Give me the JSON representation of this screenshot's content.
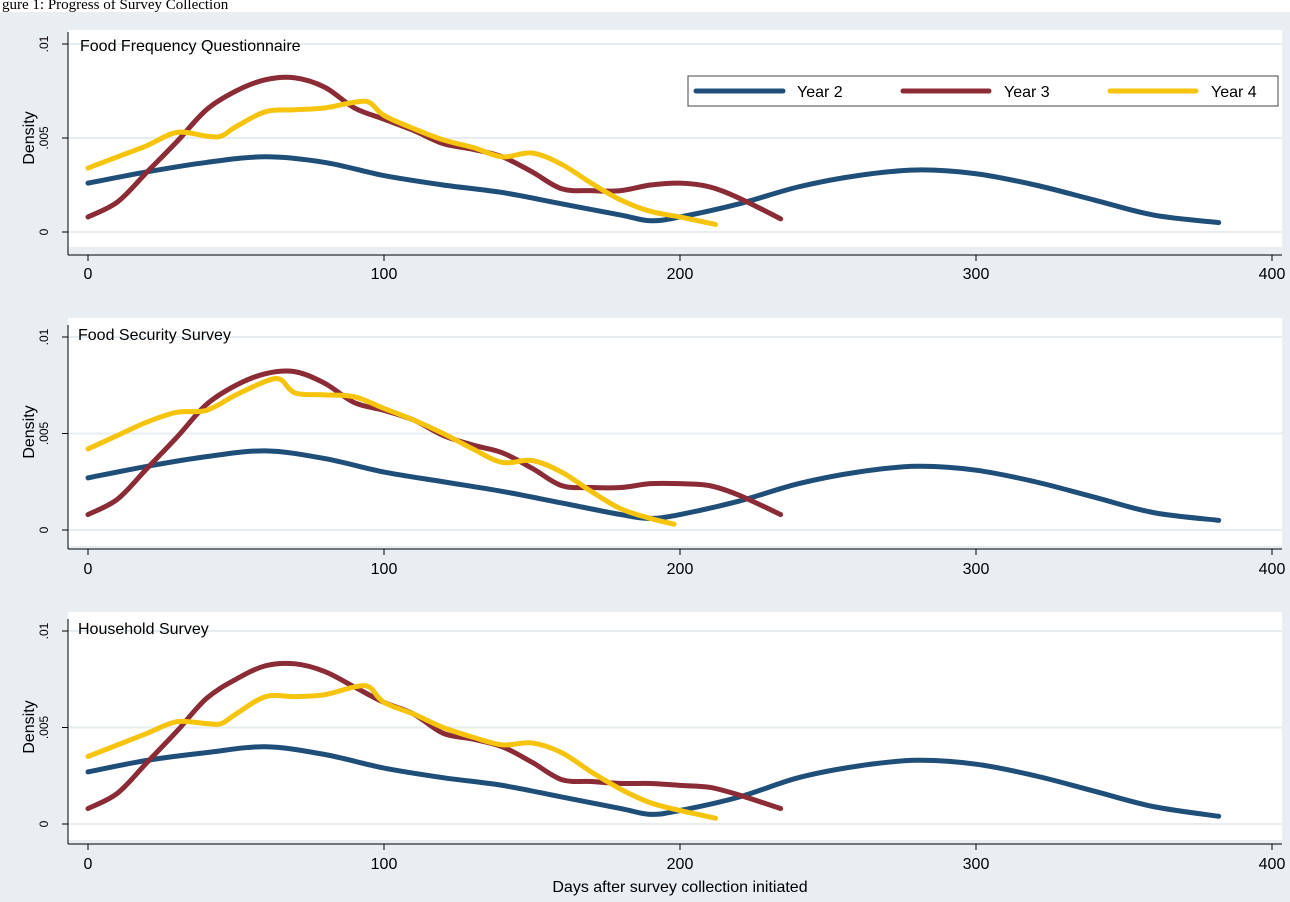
{
  "caption": "gure 1: Progress of Survey Collection",
  "colors": {
    "figure_background": "#e9eef2",
    "plot_background": "#ffffff",
    "grid": "#e6ecef",
    "axis": "#000000",
    "year2": "#1f4e79",
    "year3": "#8b2b35",
    "year4": "#f6c40c"
  },
  "chart_data": [
    {
      "type": "line",
      "title": "Food Frequency Questionnaire",
      "xlabel": "",
      "ylabel": "Density",
      "xlim": [
        0,
        400
      ],
      "ylim": [
        0,
        0.01
      ],
      "xticks": [
        0,
        100,
        200,
        300,
        400
      ],
      "xtick_labels": [
        "0",
        "100",
        "200",
        "300",
        "400"
      ],
      "yticks": [
        0,
        0.005,
        0.01
      ],
      "ytick_labels": [
        "0",
        ".005",
        ".01"
      ],
      "grid": true,
      "legend": {
        "placement": "top-right",
        "entries": [
          "Year 2",
          "Year 3",
          "Year 4"
        ]
      },
      "series": [
        {
          "name": "Year 2",
          "color": "#1f4e79",
          "x": [
            0,
            20,
            40,
            60,
            80,
            100,
            120,
            140,
            160,
            180,
            190,
            200,
            220,
            240,
            260,
            280,
            300,
            320,
            340,
            360,
            382
          ],
          "y": [
            0.0026,
            0.0032,
            0.0037,
            0.004,
            0.0037,
            0.003,
            0.0025,
            0.0021,
            0.0015,
            0.0009,
            0.0006,
            0.0008,
            0.0015,
            0.0024,
            0.003,
            0.0033,
            0.0031,
            0.0025,
            0.0017,
            0.0009,
            0.0005
          ]
        },
        {
          "name": "Year 3",
          "color": "#8b2b35",
          "x": [
            0,
            10,
            20,
            30,
            40,
            50,
            60,
            70,
            80,
            90,
            100,
            110,
            120,
            130,
            140,
            150,
            160,
            170,
            180,
            190,
            200,
            210,
            220,
            234
          ],
          "y": [
            0.0008,
            0.0016,
            0.0032,
            0.0048,
            0.0065,
            0.0075,
            0.0081,
            0.0082,
            0.0077,
            0.0066,
            0.006,
            0.0054,
            0.0047,
            0.0044,
            0.004,
            0.0032,
            0.0023,
            0.0022,
            0.0022,
            0.0025,
            0.0026,
            0.0024,
            0.0018,
            0.0007
          ]
        },
        {
          "name": "Year 4",
          "color": "#f6c40c",
          "x": [
            0,
            10,
            20,
            30,
            40,
            45,
            50,
            60,
            70,
            80,
            90,
            95,
            100,
            110,
            120,
            130,
            140,
            150,
            160,
            170,
            180,
            190,
            200,
            212
          ],
          "y": [
            0.0034,
            0.004,
            0.0046,
            0.0053,
            0.0051,
            0.0051,
            0.0056,
            0.0064,
            0.0065,
            0.0066,
            0.0069,
            0.0069,
            0.0062,
            0.0055,
            0.0049,
            0.0045,
            0.004,
            0.0042,
            0.0036,
            0.0026,
            0.0017,
            0.0011,
            0.0008,
            0.0004
          ]
        }
      ]
    },
    {
      "type": "line",
      "title": "Food Security Survey",
      "xlabel": "",
      "ylabel": "Density",
      "xlim": [
        0,
        400
      ],
      "ylim": [
        0,
        0.01
      ],
      "xticks": [
        0,
        100,
        200,
        300,
        400
      ],
      "xtick_labels": [
        "0",
        "100",
        "200",
        "300",
        "400"
      ],
      "yticks": [
        0,
        0.005,
        0.01
      ],
      "ytick_labels": [
        "0",
        ".005",
        ".01"
      ],
      "grid": true,
      "series": [
        {
          "name": "Year 2",
          "color": "#1f4e79",
          "x": [
            0,
            20,
            40,
            60,
            80,
            100,
            120,
            140,
            160,
            180,
            190,
            200,
            220,
            240,
            260,
            280,
            300,
            320,
            340,
            360,
            382
          ],
          "y": [
            0.0027,
            0.0033,
            0.0038,
            0.0041,
            0.0037,
            0.003,
            0.0025,
            0.002,
            0.0014,
            0.0008,
            0.0006,
            0.0008,
            0.0015,
            0.0024,
            0.003,
            0.0033,
            0.0031,
            0.0025,
            0.0017,
            0.0009,
            0.0005
          ]
        },
        {
          "name": "Year 3",
          "color": "#8b2b35",
          "x": [
            0,
            10,
            20,
            30,
            40,
            50,
            60,
            70,
            80,
            90,
            100,
            110,
            120,
            130,
            140,
            150,
            160,
            170,
            180,
            190,
            200,
            210,
            220,
            234
          ],
          "y": [
            0.0008,
            0.0016,
            0.0032,
            0.0048,
            0.0065,
            0.0075,
            0.0081,
            0.0082,
            0.0076,
            0.0066,
            0.0062,
            0.0057,
            0.0049,
            0.0044,
            0.004,
            0.0032,
            0.0023,
            0.0022,
            0.0022,
            0.0024,
            0.0024,
            0.0023,
            0.0018,
            0.0008
          ]
        },
        {
          "name": "Year 4",
          "color": "#f6c40c",
          "x": [
            0,
            10,
            20,
            30,
            40,
            50,
            60,
            65,
            70,
            80,
            90,
            100,
            110,
            120,
            130,
            140,
            150,
            160,
            170,
            180,
            190,
            198
          ],
          "y": [
            0.0042,
            0.0049,
            0.0056,
            0.0061,
            0.0062,
            0.007,
            0.0077,
            0.0078,
            0.0071,
            0.007,
            0.0069,
            0.0063,
            0.0057,
            0.005,
            0.0042,
            0.0035,
            0.0036,
            0.003,
            0.002,
            0.0011,
            0.0006,
            0.0003
          ]
        }
      ]
    },
    {
      "type": "line",
      "title": "Household Survey",
      "xlabel": "Days after survey collection initiated",
      "ylabel": "Density",
      "xlim": [
        0,
        400
      ],
      "ylim": [
        0,
        0.01
      ],
      "xticks": [
        0,
        100,
        200,
        300,
        400
      ],
      "xtick_labels": [
        "0",
        "100",
        "200",
        "300",
        "400"
      ],
      "yticks": [
        0,
        0.005,
        0.01
      ],
      "ytick_labels": [
        "0",
        ".005",
        ".01"
      ],
      "grid": true,
      "series": [
        {
          "name": "Year 2",
          "color": "#1f4e79",
          "x": [
            0,
            20,
            40,
            60,
            80,
            100,
            120,
            140,
            160,
            180,
            190,
            200,
            220,
            240,
            260,
            280,
            300,
            320,
            340,
            360,
            382
          ],
          "y": [
            0.0027,
            0.0033,
            0.0037,
            0.004,
            0.0036,
            0.0029,
            0.0024,
            0.002,
            0.0014,
            0.0008,
            0.0005,
            0.0007,
            0.0014,
            0.0024,
            0.003,
            0.0033,
            0.0031,
            0.0025,
            0.0017,
            0.0009,
            0.0004
          ]
        },
        {
          "name": "Year 3",
          "color": "#8b2b35",
          "x": [
            0,
            10,
            20,
            30,
            40,
            50,
            60,
            70,
            80,
            90,
            100,
            110,
            120,
            130,
            140,
            150,
            160,
            170,
            180,
            190,
            200,
            210,
            220,
            234
          ],
          "y": [
            0.0008,
            0.0016,
            0.0032,
            0.0048,
            0.0065,
            0.0075,
            0.0082,
            0.0083,
            0.0079,
            0.0071,
            0.0063,
            0.0057,
            0.0047,
            0.0044,
            0.004,
            0.0032,
            0.0023,
            0.0022,
            0.0021,
            0.0021,
            0.002,
            0.0019,
            0.0015,
            0.0008
          ]
        },
        {
          "name": "Year 4",
          "color": "#f6c40c",
          "x": [
            0,
            10,
            20,
            30,
            40,
            45,
            50,
            60,
            70,
            80,
            90,
            95,
            100,
            110,
            120,
            130,
            140,
            150,
            160,
            170,
            180,
            190,
            200,
            212
          ],
          "y": [
            0.0035,
            0.0041,
            0.0047,
            0.0053,
            0.0052,
            0.0052,
            0.0057,
            0.0066,
            0.0066,
            0.0067,
            0.0071,
            0.0071,
            0.0063,
            0.0057,
            0.005,
            0.0045,
            0.0041,
            0.0042,
            0.0037,
            0.0027,
            0.0018,
            0.0011,
            0.0007,
            0.0003
          ]
        }
      ]
    }
  ]
}
